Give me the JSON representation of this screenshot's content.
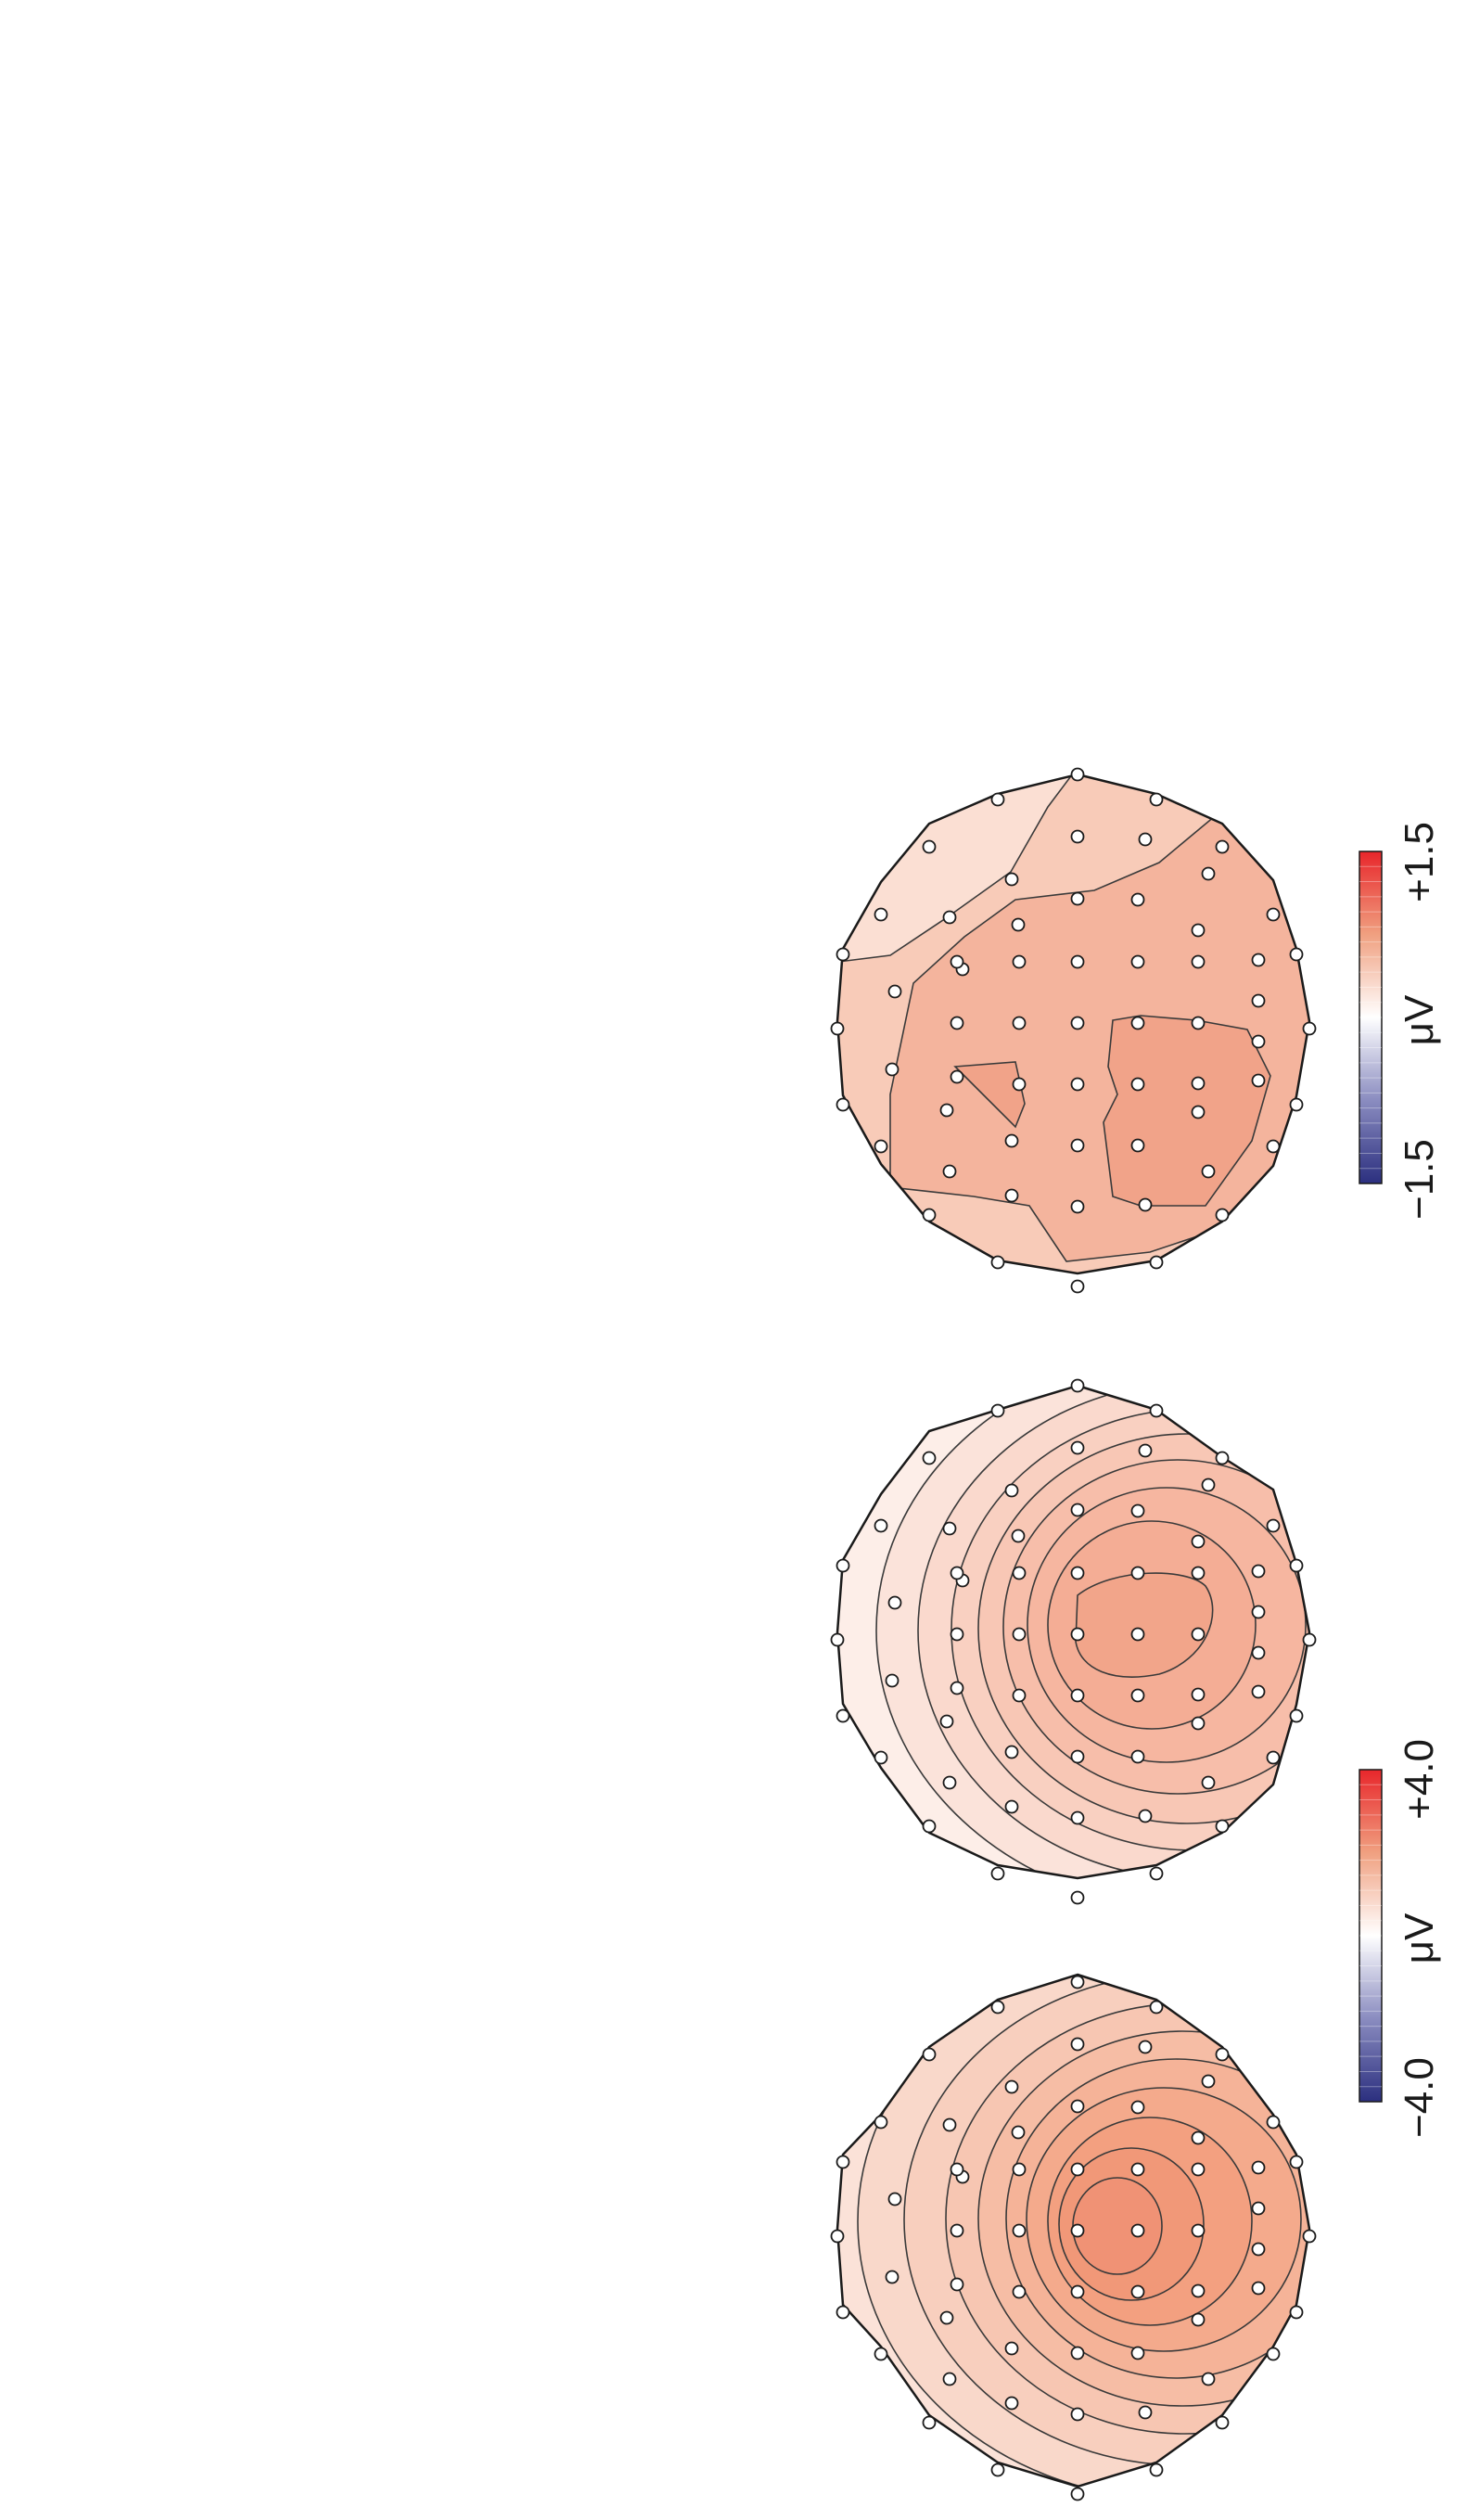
{
  "figure": {
    "scales": [
      {
        "min_label": "−4.0",
        "max_label": "+4.0",
        "unit": "μV",
        "applies_to": [
          "map-1",
          "map-2"
        ]
      },
      {
        "min_label": "−1.5",
        "max_label": "+1.5",
        "unit": "μV",
        "applies_to": [
          "map-3"
        ]
      }
    ],
    "maps": [
      {
        "id": "map-1",
        "contour_levels": 9,
        "peak_color": "#f09275"
      },
      {
        "id": "map-2",
        "contour_levels": 9,
        "peak_color": "#f2a58a"
      },
      {
        "id": "map-3",
        "contour_levels": 3,
        "peak_color": "#f1a389"
      }
    ],
    "colormap": {
      "negative": "#2b2f7f",
      "neutral": "#ffffff",
      "positive": "#e8262b"
    }
  }
}
